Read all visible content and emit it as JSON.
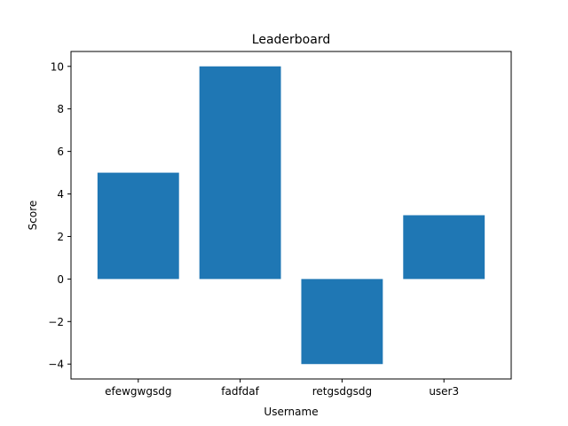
{
  "chart_data": {
    "type": "bar",
    "title": "Leaderboard",
    "xlabel": "Username",
    "ylabel": "Score",
    "categories": [
      "efewgwgsdg",
      "fadfdaf",
      "retgsdgsdg",
      "user3"
    ],
    "values": [
      5,
      10,
      -4,
      3
    ],
    "ylim": [
      -4.7,
      10.7
    ],
    "yticks": [
      -4,
      -2,
      0,
      2,
      4,
      6,
      8,
      10
    ],
    "ytick_labels": [
      "−4",
      "−2",
      "0",
      "2",
      "4",
      "6",
      "8",
      "10"
    ],
    "bar_color": "#1f77b4",
    "grid": false,
    "legend": "none"
  }
}
